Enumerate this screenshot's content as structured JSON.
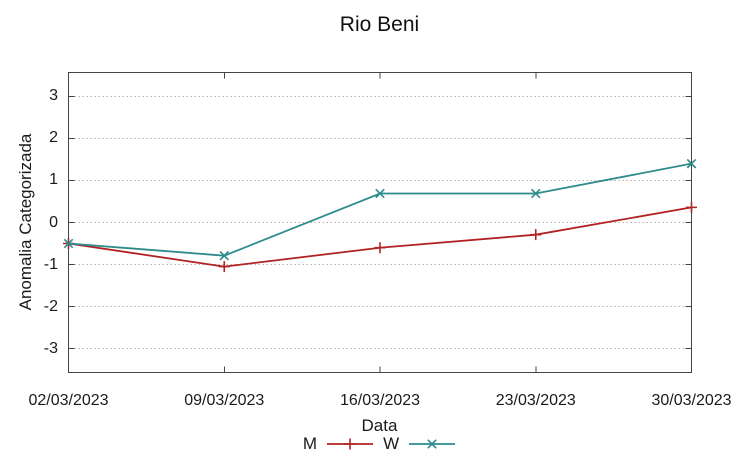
{
  "chart_data": {
    "type": "line",
    "title": "Rio Beni",
    "xlabel": "Data",
    "ylabel": "Anomalia Categorizada",
    "categories": [
      "02/03/2023",
      "09/03/2023",
      "16/03/2023",
      "23/03/2023",
      "30/03/2023"
    ],
    "yticks": [
      3,
      2,
      1,
      0,
      -1,
      -2,
      -3
    ],
    "ylim": [
      -3.57,
      3.57
    ],
    "grid": "horizontal dotted gridlines at integer y values",
    "legend_position": "bottom-center",
    "series": [
      {
        "name": "M",
        "color": "#b22222",
        "marker": "plus",
        "values": [
          -0.5,
          -1.05,
          -0.6,
          -0.29,
          0.36
        ]
      },
      {
        "name": "W",
        "color": "#2e8b8b",
        "marker": "x",
        "values": [
          -0.5,
          -0.79,
          0.69,
          0.69,
          1.4
        ]
      }
    ],
    "colors": {
      "border": "#444444",
      "grid": "#b4b4b4",
      "text": "#1a1a1a",
      "background": "#ffffff"
    }
  }
}
